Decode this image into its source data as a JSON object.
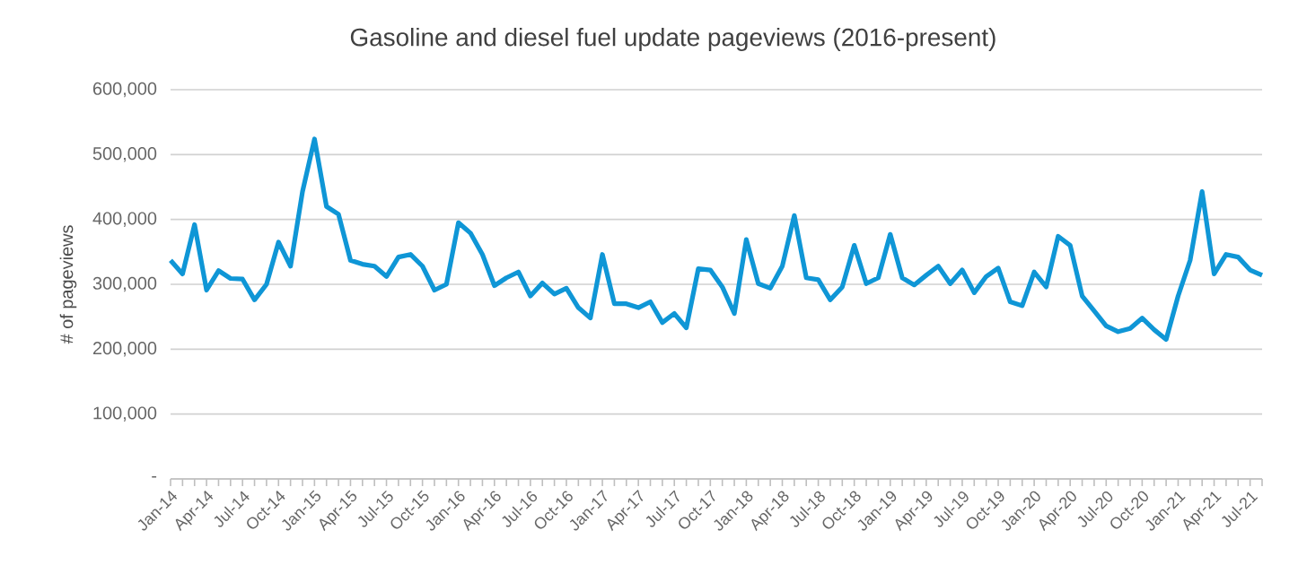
{
  "chart_data": {
    "type": "line",
    "title": "Gasoline and diesel fuel update pageviews (2016-present)",
    "ylabel": "# of pageviews",
    "categories": [
      "Jan-14",
      null,
      null,
      "Apr-14",
      null,
      null,
      "Jul-14",
      null,
      null,
      "Oct-14",
      null,
      null,
      "Jan-15",
      null,
      null,
      "Apr-15",
      null,
      null,
      "Jul-15",
      null,
      null,
      "Oct-15",
      null,
      null,
      "Jan-16",
      null,
      null,
      "Apr-16",
      null,
      null,
      "Jul-16",
      null,
      null,
      "Oct-16",
      null,
      null,
      "Jan-17",
      null,
      null,
      "Apr-17",
      null,
      null,
      "Jul-17",
      null,
      null,
      "Oct-17",
      null,
      null,
      "Jan-18",
      null,
      null,
      "Apr-18",
      null,
      null,
      "Jul-18",
      null,
      null,
      "Oct-18",
      null,
      null,
      "Jan-19",
      null,
      null,
      "Apr-19",
      null,
      null,
      "Jul-19",
      null,
      null,
      "Oct-19",
      null,
      null,
      "Jan-20",
      null,
      null,
      "Apr-20",
      null,
      null,
      "Jul-20",
      null,
      null,
      "Oct-20",
      null,
      null,
      "Jan-21",
      null,
      null,
      "Apr-21",
      null,
      null,
      "Jul-21",
      null
    ],
    "series": [
      {
        "color": "#0f96d6",
        "values": [
          337000,
          316000,
          392000,
          291000,
          321000,
          309000,
          308000,
          276000,
          300000,
          365000,
          328000,
          443000,
          524000,
          420000,
          408000,
          337000,
          331000,
          328000,
          312000,
          342000,
          346000,
          328000,
          291000,
          300000,
          395000,
          379000,
          346000,
          298000,
          310000,
          319000,
          282000,
          302000,
          285000,
          294000,
          264000,
          248000,
          346000,
          270000,
          270000,
          264000,
          273000,
          241000,
          255000,
          233000,
          324000,
          322000,
          296000,
          255000,
          369000,
          301000,
          294000,
          328000,
          406000,
          310000,
          307000,
          276000,
          296000,
          360000,
          301000,
          310000,
          377000,
          310000,
          299000,
          314000,
          328000,
          301000,
          322000,
          287000,
          312000,
          325000,
          273000,
          267000,
          319000,
          296000,
          374000,
          360000,
          282000,
          259000,
          236000,
          227000,
          232000,
          248000,
          230000,
          215000,
          282000,
          337000,
          443000,
          316000,
          346000,
          342000,
          322000,
          314000
        ]
      }
    ],
    "ylim": [
      0,
      600000
    ],
    "yticks": [
      {
        "value": 0,
        "label": "-"
      },
      {
        "value": 100000,
        "label": "100,000"
      },
      {
        "value": 200000,
        "label": "200,000"
      },
      {
        "value": 300000,
        "label": "300,000"
      },
      {
        "value": 400000,
        "label": "400,000"
      },
      {
        "value": 500000,
        "label": "500,000"
      },
      {
        "value": 600000,
        "label": "600,000"
      }
    ],
    "grid": "y",
    "line_style": "solid"
  }
}
